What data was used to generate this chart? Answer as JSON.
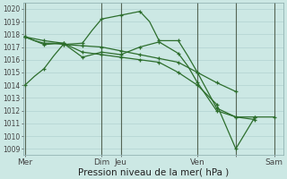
{
  "xlabel": "Pression niveau de la mer( hPa )",
  "background_color": "#cce8e4",
  "grid_color": "#aacccc",
  "line_color": "#2d6e2d",
  "vline_color": "#556655",
  "ylim": [
    1008.5,
    1020.5
  ],
  "yticks": [
    1009,
    1010,
    1011,
    1012,
    1013,
    1014,
    1015,
    1016,
    1017,
    1018,
    1019,
    1020
  ],
  "xlim": [
    -0.1,
    13.5
  ],
  "xtick_positions": [
    0,
    4,
    5,
    9,
    11,
    13
  ],
  "xtick_labels": [
    "Mer",
    "Dim",
    "Jeu",
    "Ven",
    "",
    "Sam"
  ],
  "vline_positions": [
    0,
    4,
    5,
    9,
    11,
    13
  ],
  "series": [
    {
      "x": [
        0,
        0.5,
        1,
        1.5,
        2,
        2.5,
        3,
        3.5,
        4,
        4.5,
        5,
        5.5,
        6,
        6.5,
        7,
        7.5,
        8,
        8.5,
        9,
        9.5,
        10,
        10.5,
        11,
        11.5,
        12
      ],
      "y": [
        1014.0,
        1014.7,
        1015.3,
        1016.3,
        1017.2,
        1017.25,
        1017.3,
        1018.3,
        1019.2,
        1019.35,
        1019.5,
        1019.65,
        1019.8,
        1019.0,
        1017.5,
        1017.5,
        1017.5,
        1016.3,
        1015.0,
        1013.6,
        1012.2,
        1011.85,
        1011.5,
        1011.4,
        1011.3
      ]
    },
    {
      "x": [
        0,
        0.5,
        1,
        1.5,
        2,
        2.5,
        3,
        3.5,
        4,
        4.5,
        5,
        5.5,
        6,
        6.5,
        7,
        7.5,
        8,
        8.5,
        9,
        9.5,
        10,
        10.5,
        11
      ],
      "y": [
        1017.8,
        1017.5,
        1017.3,
        1017.3,
        1017.2,
        1017.15,
        1017.1,
        1017.05,
        1017.0,
        1016.85,
        1016.7,
        1016.55,
        1016.4,
        1016.25,
        1016.1,
        1015.95,
        1015.8,
        1015.4,
        1015.0,
        1014.6,
        1014.2,
        1013.85,
        1013.5
      ]
    },
    {
      "x": [
        0,
        0.5,
        1,
        1.5,
        2,
        2.5,
        3,
        3.5,
        4,
        4.5,
        5,
        5.5,
        6,
        6.5,
        7,
        7.5,
        8,
        8.5,
        9,
        9.5,
        10,
        10.5,
        11,
        11.5,
        12
      ],
      "y": [
        1017.8,
        1017.65,
        1017.5,
        1017.4,
        1017.3,
        1016.75,
        1016.2,
        1016.4,
        1016.6,
        1016.5,
        1016.4,
        1016.7,
        1017.0,
        1017.2,
        1017.4,
        1016.95,
        1016.5,
        1015.5,
        1014.2,
        1013.1,
        1012.0,
        1011.75,
        1011.5,
        1011.5,
        1011.5
      ]
    },
    {
      "x": [
        0,
        0.5,
        1,
        1.5,
        2,
        2.5,
        3,
        3.5,
        4,
        4.5,
        5,
        5.5,
        6,
        6.5,
        7,
        7.5,
        8,
        8.5,
        9,
        9.5,
        10,
        10.5,
        11,
        11.5,
        12,
        12.5,
        13
      ],
      "y": [
        1017.8,
        1017.5,
        1017.2,
        1017.25,
        1017.3,
        1016.95,
        1016.6,
        1016.5,
        1016.4,
        1016.3,
        1016.2,
        1016.1,
        1016.0,
        1015.9,
        1015.8,
        1015.4,
        1015.0,
        1014.5,
        1014.0,
        1013.25,
        1012.5,
        1010.75,
        1009.0,
        1010.25,
        1011.5,
        1011.5,
        1011.5
      ]
    }
  ]
}
